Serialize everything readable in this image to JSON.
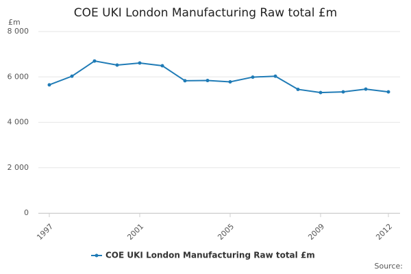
{
  "chart_data": {
    "type": "line",
    "title": "COE UKI London Manufacturing Raw total £m",
    "y_label": "£m",
    "source": "Source:",
    "x": [
      1997,
      1998,
      1999,
      2000,
      2001,
      2002,
      2003,
      2004,
      2005,
      2006,
      2007,
      2008,
      2009,
      2010,
      2011,
      2012
    ],
    "series": [
      {
        "name": "COE UKI London Manufacturing Raw total £m",
        "color": "#1f7bb6",
        "values": [
          5650,
          6030,
          6700,
          6520,
          6610,
          6490,
          5830,
          5840,
          5780,
          5990,
          6030,
          5450,
          5310,
          5340,
          5460,
          5340
        ]
      }
    ],
    "xlim": [
      1997,
      2012
    ],
    "xticks": [
      1997,
      2001,
      2005,
      2009,
      2012
    ],
    "ylim": [
      0,
      8000
    ],
    "yticks": [
      0,
      {
        "value": 2000,
        "label": "2 000"
      },
      {
        "value": 4000,
        "label": "4 000"
      },
      {
        "value": 6000,
        "label": "6 000"
      },
      {
        "value": 8000,
        "label": "8 000"
      }
    ],
    "grid": true
  }
}
